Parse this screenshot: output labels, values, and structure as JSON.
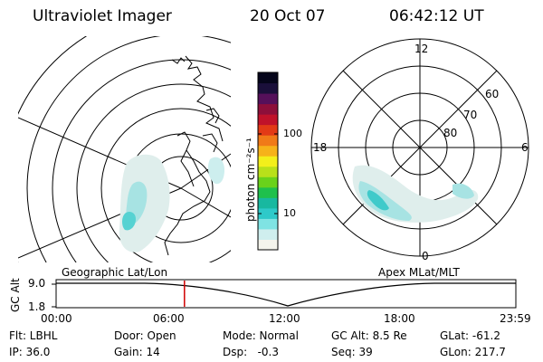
{
  "header": {
    "instrument": "Ultraviolet Imager",
    "date": "20 Oct 07",
    "time": "06:42:12 UT"
  },
  "left_panel": {
    "label": "Geographic Lat/Lon"
  },
  "right_panel": {
    "label": "Apex MLat/MLT",
    "mlt_labels": [
      "12",
      "18",
      "6",
      "0"
    ],
    "mlat_labels": [
      "60",
      "70",
      "80"
    ]
  },
  "colorbar": {
    "title": "photon cm⁻²s⁻¹",
    "ticks": [
      "100",
      "10"
    ],
    "colors": [
      "#f4f4ec",
      "#cfeeee",
      "#7fe3e3",
      "#2ec9c9",
      "#18b8a0",
      "#1fc04c",
      "#6ad21b",
      "#b9e01a",
      "#f3ef1b",
      "#f6b21a",
      "#f07a18",
      "#e23a16",
      "#c0122a",
      "#8d0f3a",
      "#55105a",
      "#1a0f3a",
      "#05051a"
    ]
  },
  "timeline": {
    "ylabel": "GC Alt",
    "ticks_y": [
      "9.0",
      "1.8"
    ],
    "ticks_x": [
      "00:00",
      "06:00",
      "12:00",
      "18:00",
      "23:59"
    ],
    "current_time_hours": 6.7,
    "marker_color": "#d00000"
  },
  "footer": {
    "row1": [
      "Flt: LBHL",
      "Door: Open",
      "Mode: Normal",
      "GC Alt: 8.5 Re",
      "GLat: -61.2"
    ],
    "row2": [
      "IP: 36.0",
      "Gain: 14",
      "Dsp:   -0.3",
      "Seq: 39",
      "GLon: 217.7"
    ]
  }
}
